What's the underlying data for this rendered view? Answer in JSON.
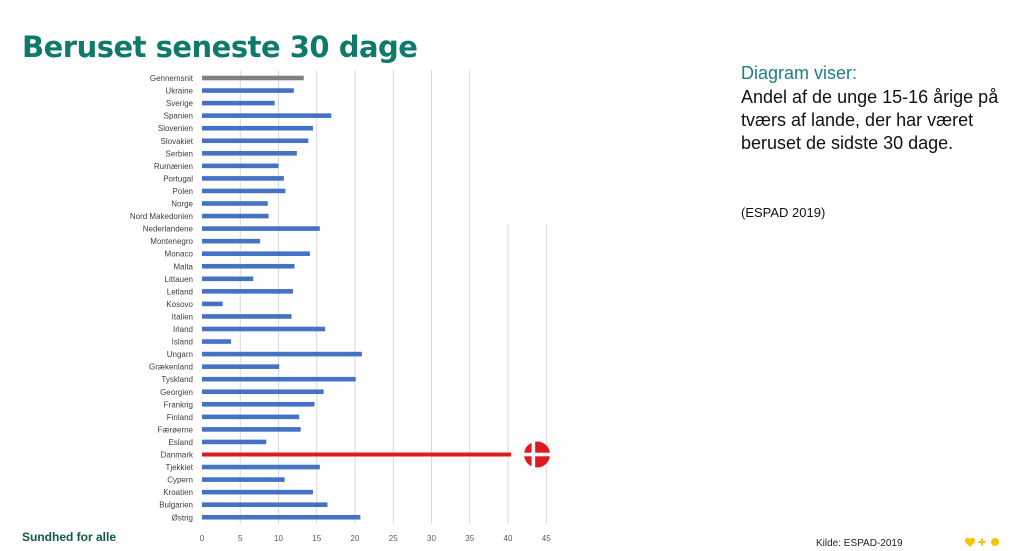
{
  "title": "Beruset seneste 30 dage",
  "description": {
    "heading": "Diagram viser:",
    "body": "Andel af de unge 15-16 årige på tværs af lande, der har været beruset de sidste 30 dage.",
    "source": "(ESPAD 2019)"
  },
  "footer": {
    "org": "Sundhed for alle",
    "source": "Kilde: ESPAD-2019"
  },
  "colors": {
    "title": "#0e7a6b",
    "bar": "#4472c4",
    "average": "#808080",
    "highlight": "#e0191c"
  },
  "icons": {
    "highlight_marker": "danish-flag-icon",
    "logo": "heart-plus-dot-logo"
  },
  "chart_data": {
    "type": "bar",
    "orientation": "horizontal",
    "categories": [
      "Gennemsnit",
      "Ukraine",
      "Sverige",
      "Spanien",
      "Slovenien",
      "Slovakiet",
      "Serbien",
      "Rumænien",
      "Portugal",
      "Polen",
      "Norge",
      "Nord Makedonien",
      "Nederlandene",
      "Montenegro",
      "Monaco",
      "Malta",
      "Littauen",
      "Letland",
      "Kosovo",
      "Italien",
      "Irland",
      "Island",
      "Ungarn",
      "Grækenland",
      "Tyskland",
      "Georgien",
      "Frankrig",
      "Finland",
      "Færøerne",
      "Esland",
      "Danmark",
      "Tjekkiet",
      "Cypern",
      "Kroatien",
      "Bulgarien",
      "Østrig"
    ],
    "values": [
      13.3,
      12.0,
      9.5,
      16.9,
      14.5,
      13.9,
      12.4,
      10.0,
      10.7,
      10.9,
      8.6,
      8.7,
      15.4,
      7.6,
      14.1,
      12.1,
      6.7,
      11.9,
      2.7,
      11.7,
      16.1,
      3.8,
      20.9,
      10.1,
      20.1,
      15.9,
      14.7,
      12.7,
      12.9,
      8.4,
      40.4,
      15.4,
      10.8,
      14.5,
      16.4,
      20.7
    ],
    "highlight": {
      "average": "Gennemsnit",
      "country": "Danmark"
    },
    "xticks": [
      "0",
      "5",
      "10",
      "15",
      "20",
      "25",
      "30",
      "35",
      "40",
      "45"
    ],
    "xlim": [
      0,
      45
    ],
    "grid": true,
    "title": "",
    "xlabel": "",
    "ylabel": ""
  }
}
